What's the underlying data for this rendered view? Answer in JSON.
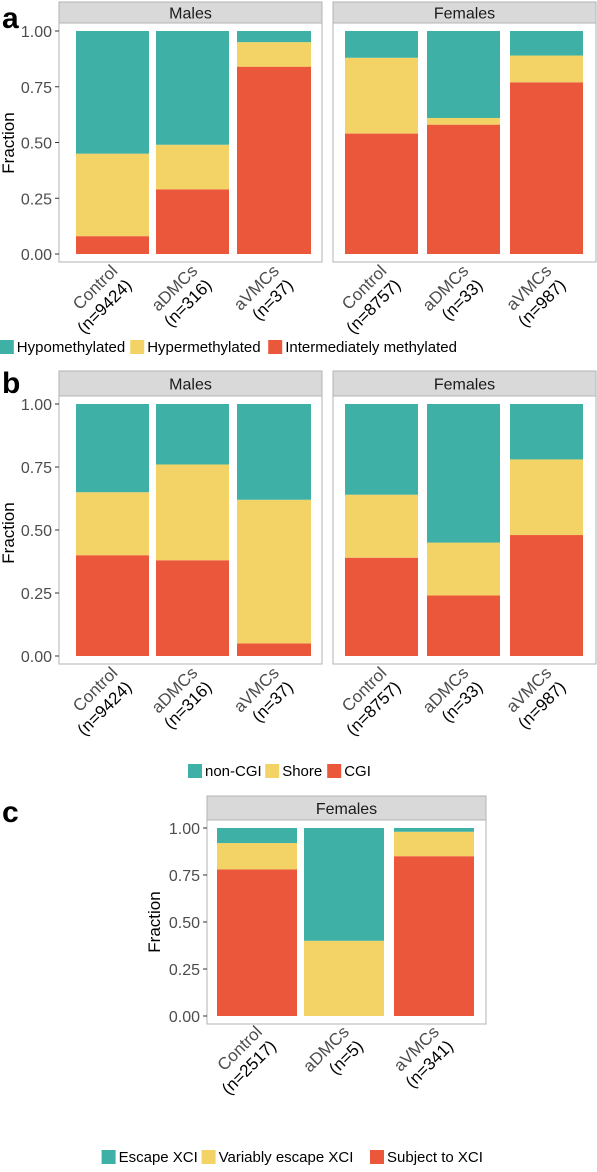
{
  "colors": {
    "teal": "#3eb0a5",
    "yellow": "#f4d366",
    "red": "#eb573b",
    "strip": "#d9d9d9",
    "panel_border": "#b3b3b3"
  },
  "chart_data": [
    {
      "id": "a",
      "type": "bar",
      "stacked": true,
      "panel_label": "a",
      "ylabel": "Fraction",
      "ylim": [
        0,
        1
      ],
      "yticks": [
        "0.00",
        "0.25",
        "0.50",
        "0.75",
        "1.00"
      ],
      "legend_position": "bottom",
      "legend": [
        {
          "name": "Hypomethylated",
          "color": "#3eb0a5"
        },
        {
          "name": "Hypermethylated",
          "color": "#f4d366"
        },
        {
          "name": "Intermediately methylated",
          "color": "#eb573b"
        }
      ],
      "facets": [
        {
          "title": "Males",
          "categories": [
            {
              "label": "Control",
              "n": "(n=9424)"
            },
            {
              "label": "aDMCs",
              "n": "(n=316)"
            },
            {
              "label": "aVMCs",
              "n": "(n=37)"
            }
          ],
          "series": [
            {
              "name": "Intermediately methylated",
              "values": [
                0.08,
                0.29,
                0.84
              ]
            },
            {
              "name": "Hypermethylated",
              "values": [
                0.37,
                0.2,
                0.11
              ]
            },
            {
              "name": "Hypomethylated",
              "values": [
                0.55,
                0.51,
                0.05
              ]
            }
          ]
        },
        {
          "title": "Females",
          "categories": [
            {
              "label": "Control",
              "n": "(n=8757)"
            },
            {
              "label": "aDMCs",
              "n": "(n=33)"
            },
            {
              "label": "aVMCs",
              "n": "(n=987)"
            }
          ],
          "series": [
            {
              "name": "Intermediately methylated",
              "values": [
                0.54,
                0.58,
                0.77
              ]
            },
            {
              "name": "Hypermethylated",
              "values": [
                0.34,
                0.03,
                0.12
              ]
            },
            {
              "name": "Hypomethylated",
              "values": [
                0.12,
                0.39,
                0.11
              ]
            }
          ]
        }
      ]
    },
    {
      "id": "b",
      "type": "bar",
      "stacked": true,
      "panel_label": "b",
      "ylabel": "Fraction",
      "ylim": [
        0,
        1
      ],
      "yticks": [
        "0.00",
        "0.25",
        "0.50",
        "0.75",
        "1.00"
      ],
      "legend_position": "bottom",
      "legend": [
        {
          "name": "non-CGI",
          "color": "#3eb0a5"
        },
        {
          "name": "Shore",
          "color": "#f4d366"
        },
        {
          "name": "CGI",
          "color": "#eb573b"
        }
      ],
      "facets": [
        {
          "title": "Males",
          "categories": [
            {
              "label": "Control",
              "n": "(n=9424)"
            },
            {
              "label": "aDMCs",
              "n": "(n=316)"
            },
            {
              "label": "aVMCs",
              "n": "(n=37)"
            }
          ],
          "series": [
            {
              "name": "CGI",
              "values": [
                0.4,
                0.38,
                0.05
              ]
            },
            {
              "name": "Shore",
              "values": [
                0.25,
                0.38,
                0.57
              ]
            },
            {
              "name": "non-CGI",
              "values": [
                0.35,
                0.24,
                0.38
              ]
            }
          ]
        },
        {
          "title": "Females",
          "categories": [
            {
              "label": "Control",
              "n": "(n=8757)"
            },
            {
              "label": "aDMCs",
              "n": "(n=33)"
            },
            {
              "label": "aVMCs",
              "n": "(n=987)"
            }
          ],
          "series": [
            {
              "name": "CGI",
              "values": [
                0.39,
                0.24,
                0.48
              ]
            },
            {
              "name": "Shore",
              "values": [
                0.25,
                0.21,
                0.3
              ]
            },
            {
              "name": "non-CGI",
              "values": [
                0.36,
                0.55,
                0.22
              ]
            }
          ]
        }
      ]
    },
    {
      "id": "c",
      "type": "bar",
      "stacked": true,
      "panel_label": "c",
      "ylabel": "Fraction",
      "ylim": [
        0,
        1
      ],
      "yticks": [
        "0.00",
        "0.25",
        "0.50",
        "0.75",
        "1.00"
      ],
      "legend_position": "bottom",
      "legend": [
        {
          "name": "Escape XCI",
          "color": "#3eb0a5"
        },
        {
          "name": "Variably escape XCI",
          "color": "#f4d366"
        },
        {
          "name": "Subject to XCI",
          "color": "#eb573b"
        }
      ],
      "facets": [
        {
          "title": "Females",
          "categories": [
            {
              "label": "Control",
              "n": "(n=2517)"
            },
            {
              "label": "aDMCs",
              "n": "(n=5)"
            },
            {
              "label": "aVMCs",
              "n": "(n=341)"
            }
          ],
          "series": [
            {
              "name": "Subject to XCI",
              "values": [
                0.78,
                0.0,
                0.85
              ]
            },
            {
              "name": "Variably escape XCI",
              "values": [
                0.14,
                0.4,
                0.13
              ]
            },
            {
              "name": "Escape XCI",
              "values": [
                0.08,
                0.6,
                0.02
              ]
            }
          ]
        }
      ]
    }
  ]
}
